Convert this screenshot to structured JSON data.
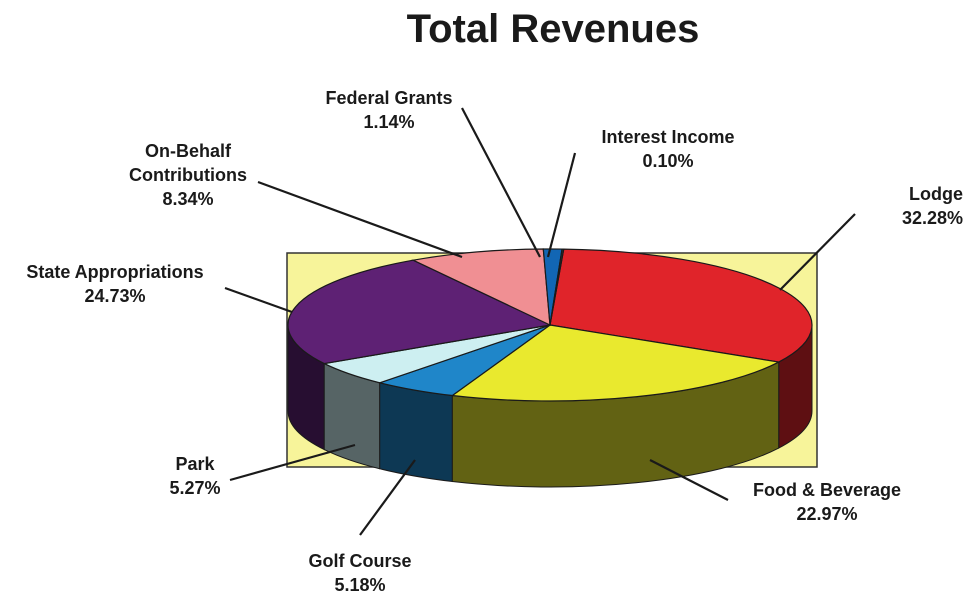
{
  "chart_data": {
    "type": "pie",
    "title": "Total Revenues",
    "slices": [
      {
        "label": "Lodge",
        "value": 32.28,
        "value_text": "32.28%",
        "color": "#e0242a"
      },
      {
        "label": "Food & Beverage",
        "value": 22.97,
        "value_text": "22.97%",
        "color": "#e9e92e"
      },
      {
        "label": "Golf Course",
        "value": 5.18,
        "value_text": "5.18%",
        "color": "#1f86c9"
      },
      {
        "label": "Park",
        "value": 5.27,
        "value_text": "5.27%",
        "color": "#cdeff1"
      },
      {
        "label": "State Appropriations",
        "value": 24.73,
        "value_text": "24.73%",
        "color": "#5e2174"
      },
      {
        "label": "On-Behalf Contributions",
        "label_lines": [
          "On-Behalf",
          "Contributions"
        ],
        "value": 8.34,
        "value_text": "8.34%",
        "color": "#f08f93"
      },
      {
        "label": "Federal Grants",
        "value": 1.14,
        "value_text": "1.14%",
        "color": "#1266b4"
      },
      {
        "label": "Interest Income",
        "value": 0.1,
        "value_text": "0.10%",
        "color": "#3a3a3a"
      }
    ],
    "background_color": "#f7f49a"
  }
}
